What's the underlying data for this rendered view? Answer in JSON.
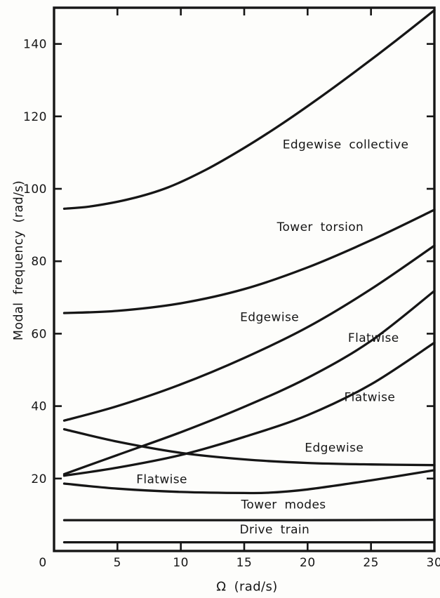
{
  "figure": {
    "background": "#fdfdfb",
    "ink_color": "#161616"
  },
  "chart_data": {
    "type": "line",
    "title": "",
    "xlabel": "Ω (rad/s)",
    "ylabel": "Modal frequency (rad/s)",
    "xlim": [
      0,
      30
    ],
    "ylim": [
      0,
      150
    ],
    "x_ticks": [
      0,
      5,
      10,
      15,
      20,
      25,
      30
    ],
    "y_ticks": [
      20,
      40,
      60,
      80,
      100,
      120,
      140
    ],
    "grid": false,
    "legend_position": "inline-curve-labels",
    "series": [
      {
        "name": "Edgewise collective",
        "x": [
          0.8,
          3,
          6,
          9,
          12,
          15,
          18,
          21,
          24,
          27,
          30
        ],
        "y": [
          94.5,
          95.2,
          97.2,
          100.4,
          105.3,
          111.3,
          118.0,
          125.3,
          133.0,
          141.0,
          149.3
        ],
        "label": {
          "text": "Edgewise collective",
          "x": 23.0,
          "y": 112.3
        }
      },
      {
        "name": "Tower torsion",
        "x": [
          0.8,
          5,
          10,
          15,
          20,
          25,
          30
        ],
        "y": [
          65.7,
          66.3,
          68.4,
          72.3,
          78.3,
          85.8,
          94.2
        ],
        "label": {
          "text": "Tower torsion",
          "x": 21.0,
          "y": 89.5
        }
      },
      {
        "name": "Edgewise",
        "x": [
          0.8,
          5,
          10,
          15,
          20,
          25,
          30
        ],
        "y": [
          36.0,
          40.0,
          46.0,
          53.3,
          61.8,
          72.3,
          84.3
        ],
        "label": {
          "text": "Edgewise",
          "x": 17.0,
          "y": 64.6
        }
      },
      {
        "name": "Flatwise",
        "x": [
          0.8,
          5,
          10,
          15,
          20,
          25,
          30
        ],
        "y": [
          21.2,
          26.5,
          32.8,
          39.8,
          47.8,
          58.0,
          71.8
        ],
        "label": {
          "text": "Flatwise",
          "x": 25.2,
          "y": 58.9
        }
      },
      {
        "name": "Flatwise",
        "x": [
          0.8,
          5,
          10,
          15,
          20,
          25,
          30
        ],
        "y": [
          20.8,
          23.0,
          26.5,
          31.5,
          37.5,
          46.0,
          57.5
        ],
        "label": {
          "text": "Flatwise",
          "x": 24.9,
          "y": 42.5
        }
      },
      {
        "name": "Edgewise",
        "x": [
          0.8,
          5,
          10,
          15,
          20,
          25,
          30
        ],
        "y": [
          33.6,
          30.2,
          27.1,
          25.3,
          24.3,
          23.9,
          23.7
        ],
        "label": {
          "text": "Edgewise",
          "x": 22.1,
          "y": 28.6
        }
      },
      {
        "name": "Flatwise",
        "x": [
          0.8,
          5,
          10,
          15,
          17,
          20,
          25,
          30
        ],
        "y": [
          18.6,
          17.2,
          16.3,
          16.0,
          16.1,
          17.0,
          19.5,
          22.3
        ],
        "label": {
          "text": "Flatwise",
          "x": 8.5,
          "y": 19.9
        }
      },
      {
        "name": "Tower modes",
        "x": [
          0.8,
          10,
          20,
          30
        ],
        "y": [
          8.5,
          8.5,
          8.5,
          8.6
        ],
        "label": {
          "text": "Tower modes",
          "x": 18.1,
          "y": 12.9
        }
      },
      {
        "name": "Drive train",
        "x": [
          0.8,
          10,
          20,
          30
        ],
        "y": [
          2.4,
          2.4,
          2.4,
          2.4
        ],
        "label": {
          "text": "Drive train",
          "x": 17.4,
          "y": 6.0
        }
      }
    ]
  }
}
